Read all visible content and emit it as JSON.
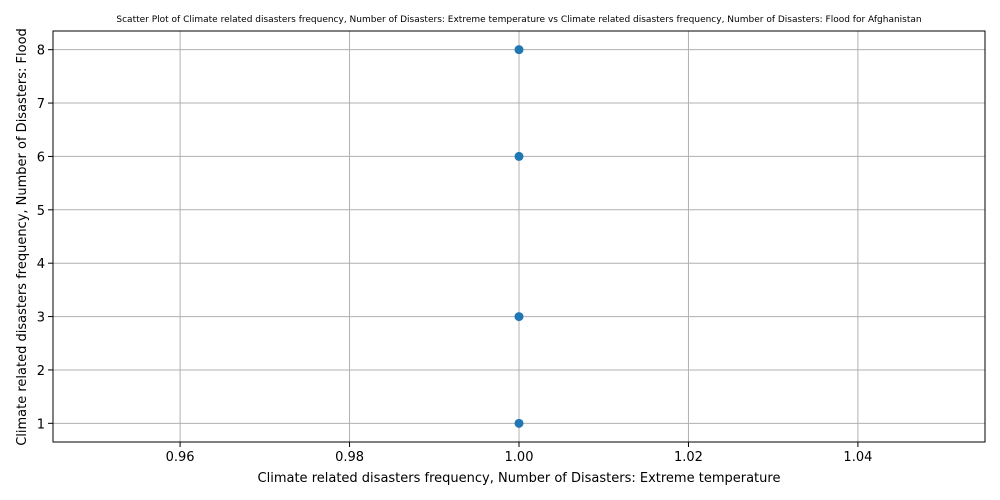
{
  "chart_data": {
    "type": "scatter",
    "title": "Scatter Plot of Climate related disasters frequency, Number of Disasters: Extreme temperature vs Climate related disasters frequency, Number of Disasters: Flood for Afghanistan",
    "xlabel": "Climate related disasters frequency, Number of Disasters: Extreme temperature",
    "ylabel": "Climate related disasters frequency, Number of Disasters: Flood",
    "xlim": [
      0.945,
      1.055
    ],
    "ylim": [
      0.65,
      8.35
    ],
    "xticks": [
      0.96,
      0.98,
      1.0,
      1.02,
      1.04
    ],
    "xtick_labels": [
      "0.96",
      "0.98",
      "1.00",
      "1.02",
      "1.04"
    ],
    "yticks": [
      1,
      2,
      3,
      4,
      5,
      6,
      7,
      8
    ],
    "ytick_labels": [
      "1",
      "2",
      "3",
      "4",
      "5",
      "6",
      "7",
      "8"
    ],
    "grid": true,
    "marker_color": "#1f77b4",
    "points": [
      {
        "x": 1.0,
        "y": 8
      },
      {
        "x": 1.0,
        "y": 6
      },
      {
        "x": 1.0,
        "y": 3
      },
      {
        "x": 1.0,
        "y": 1
      }
    ]
  }
}
